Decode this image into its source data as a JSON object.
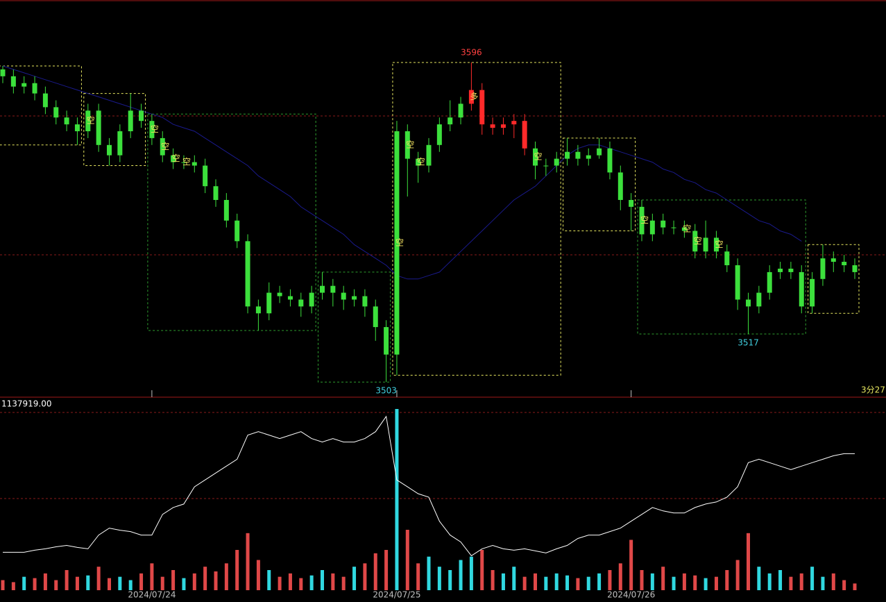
{
  "chart_data": {
    "type": "candlestick",
    "categories": [
      null,
      null,
      null,
      null,
      null,
      null,
      null,
      null,
      null,
      null,
      null,
      null,
      null,
      null,
      "2024/07/24",
      null,
      null,
      null,
      null,
      null,
      null,
      null,
      null,
      null,
      null,
      null,
      null,
      null,
      null,
      null,
      null,
      null,
      null,
      null,
      null,
      null,
      null,
      "2024/07/25",
      null,
      null,
      null,
      null,
      null,
      null,
      null,
      null,
      null,
      null,
      null,
      null,
      null,
      null,
      null,
      null,
      null,
      null,
      null,
      null,
      null,
      "2024/07/26",
      null,
      null,
      null,
      null,
      null,
      null,
      null,
      null,
      null,
      null,
      null,
      null,
      null,
      null,
      null,
      null,
      null,
      null,
      null,
      null,
      null
    ],
    "open": [
      3594,
      3592,
      3589,
      3590,
      3587,
      3583,
      3580,
      3578,
      3576,
      3582,
      3572,
      3569,
      3576,
      3582,
      3579,
      3574,
      3569,
      3567,
      3567,
      3566,
      3560,
      3556,
      3550,
      3544,
      3525,
      3523,
      3529,
      3528,
      3527,
      3525,
      3529,
      3531,
      3529,
      3527,
      3528,
      3525,
      3519,
      3511,
      3576,
      3568,
      3566,
      3572,
      3578,
      3580,
      3584,
      3588,
      3578,
      3577,
      3578,
      3579,
      3571,
      3566,
      3566,
      3568,
      3570,
      3568,
      3569,
      3571,
      3564,
      3556,
      3554,
      3546,
      3550,
      3548,
      3548,
      3547,
      3541,
      3545,
      3541,
      3537,
      3527,
      3525,
      3529,
      3535,
      3536,
      3535,
      3525,
      3533,
      3539,
      3538,
      3537
    ],
    "high": [
      3595,
      3594,
      3592,
      3592,
      3589,
      3585,
      3582,
      3580,
      3584,
      3584,
      3574,
      3578,
      3587,
      3584,
      3581,
      3576,
      3571,
      3569,
      3569,
      3568,
      3562,
      3558,
      3552,
      3546,
      3527,
      3532,
      3531,
      3530,
      3529,
      3531,
      3535,
      3533,
      3531,
      3530,
      3530,
      3527,
      3521,
      3579,
      3578,
      3570,
      3574,
      3580,
      3585,
      3586,
      3596,
      3590,
      3580,
      3580,
      3581,
      3581,
      3573,
      3568,
      3570,
      3574,
      3572,
      3571,
      3574,
      3573,
      3566,
      3558,
      3556,
      3552,
      3552,
      3550,
      3550,
      3549,
      3550,
      3547,
      3543,
      3539,
      3529,
      3531,
      3537,
      3538,
      3538,
      3537,
      3535,
      3543,
      3541,
      3540,
      3539
    ],
    "low": [
      3590,
      3587,
      3587,
      3585,
      3581,
      3578,
      3576,
      3572,
      3574,
      3570,
      3566,
      3567,
      3574,
      3577,
      3572,
      3567,
      3565,
      3565,
      3564,
      3558,
      3554,
      3548,
      3542,
      3523,
      3518,
      3521,
      3526,
      3525,
      3522,
      3523,
      3527,
      3525,
      3524,
      3525,
      3522,
      3515,
      3503,
      3505,
      3557,
      3561,
      3564,
      3570,
      3576,
      3578,
      3582,
      3575,
      3575,
      3575,
      3574,
      3569,
      3562,
      3563,
      3564,
      3566,
      3566,
      3566,
      3568,
      3562,
      3553,
      3547,
      3544,
      3544,
      3546,
      3546,
      3545,
      3539,
      3539,
      3539,
      3535,
      3524,
      3517,
      3523,
      3527,
      3533,
      3533,
      3523,
      3523,
      3531,
      3535,
      3535,
      3533
    ],
    "close": [
      3592,
      3589,
      3590,
      3587,
      3583,
      3580,
      3578,
      3576,
      3582,
      3572,
      3569,
      3576,
      3582,
      3579,
      3574,
      3569,
      3567,
      3567,
      3566,
      3560,
      3556,
      3550,
      3544,
      3525,
      3523,
      3529,
      3528,
      3527,
      3525,
      3529,
      3531,
      3529,
      3527,
      3528,
      3525,
      3519,
      3511,
      3576,
      3568,
      3566,
      3572,
      3578,
      3580,
      3584,
      3588,
      3578,
      3577,
      3578,
      3579,
      3571,
      3566,
      3566,
      3568,
      3570,
      3568,
      3569,
      3571,
      3564,
      3556,
      3554,
      3546,
      3550,
      3548,
      3548,
      3547,
      3541,
      3545,
      3541,
      3537,
      3527,
      3525,
      3529,
      3535,
      3536,
      3535,
      3525,
      3533,
      3539,
      3538,
      3537,
      3535
    ],
    "color": "#3ce03c",
    "highlight": {
      "from": 44,
      "to": 49,
      "color": "#ff2a2a"
    },
    "ma": [
      3595,
      3594,
      3593,
      3592,
      3591,
      3590,
      3589,
      3588,
      3587,
      3586,
      3585,
      3584,
      3583,
      3582,
      3581,
      3580,
      3578,
      3577,
      3576,
      3574,
      3572,
      3570,
      3568,
      3566,
      3563,
      3561,
      3559,
      3557,
      3554,
      3552,
      3550,
      3548,
      3546,
      3543,
      3541,
      3539,
      3537,
      3534,
      3533,
      3533,
      3534,
      3535,
      3538,
      3541,
      3544,
      3547,
      3550,
      3553,
      3556,
      3558,
      3560,
      3563,
      3566,
      3569,
      3571,
      3572,
      3572,
      3571,
      3570,
      3569,
      3568,
      3567,
      3565,
      3564,
      3562,
      3561,
      3559,
      3558,
      3556,
      3554,
      3552,
      3550,
      3549,
      3547,
      3546,
      3544,
      null,
      null,
      null,
      null,
      null
    ],
    "ma_color": "#1a1a8c",
    "ylim": [
      3498.6,
      3614.2
    ],
    "boxes": [
      {
        "from": 0,
        "to": 7,
        "color": "#e8e860"
      },
      {
        "from": 8,
        "to": 13,
        "color": "#e8e860"
      },
      {
        "from": 14,
        "to": 29,
        "color": "#2e9e2e"
      },
      {
        "from": 30,
        "to": 36,
        "color": "#2e9e2e"
      },
      {
        "from": 37,
        "to": 52,
        "color": "#e8e860"
      },
      {
        "from": 53,
        "to": 59,
        "color": "#e8e860"
      },
      {
        "from": 60,
        "to": 75,
        "color": "#2e9e2e"
      },
      {
        "from": 76,
        "to": 80,
        "color": "#e8e860"
      }
    ],
    "annotations": [
      {
        "label": "3596",
        "index": 44,
        "at": "high",
        "color": "#ff4040"
      },
      {
        "label": "3503",
        "index": 36,
        "at": "low",
        "color": "#40d0e0"
      },
      {
        "label": "3517",
        "index": 70,
        "at": "low",
        "color": "#40d0e0"
      }
    ],
    "signals": [
      {
        "index": 8,
        "label": "空"
      },
      {
        "index": 14,
        "label": "空"
      },
      {
        "index": 15,
        "label": "空"
      },
      {
        "index": 16,
        "label": "空"
      },
      {
        "index": 17,
        "label": "空"
      },
      {
        "index": 37,
        "label": "空"
      },
      {
        "index": 38,
        "label": "空"
      },
      {
        "index": 39,
        "label": "空"
      },
      {
        "index": 44,
        "label": "多"
      },
      {
        "index": 50,
        "label": "空"
      },
      {
        "index": 60,
        "label": "空"
      },
      {
        "index": 64,
        "label": "空"
      },
      {
        "index": 65,
        "label": "空"
      },
      {
        "index": 67,
        "label": "空"
      }
    ],
    "time_label": "3分27",
    "volume_label": "1137919.00",
    "volume": [
      60000,
      48000,
      80000,
      72000,
      100000,
      60000,
      120000,
      80000,
      88000,
      140000,
      72000,
      80000,
      60000,
      100000,
      160000,
      80000,
      120000,
      72000,
      100000,
      140000,
      112000,
      160000,
      240000,
      340000,
      180000,
      120000,
      80000,
      100000,
      72000,
      88000,
      120000,
      100000,
      80000,
      140000,
      160000,
      220000,
      240000,
      1080000,
      360000,
      160000,
      200000,
      140000,
      120000,
      180000,
      200000,
      240000,
      120000,
      100000,
      140000,
      80000,
      100000,
      80000,
      100000,
      88000,
      72000,
      80000,
      100000,
      120000,
      160000,
      300000,
      120000,
      100000,
      140000,
      80000,
      100000,
      88000,
      72000,
      80000,
      120000,
      180000,
      340000,
      140000,
      100000,
      120000,
      80000,
      100000,
      140000,
      80000,
      100000,
      60000,
      40000
    ],
    "vol_lim": [
      0,
      1137919
    ],
    "up_color": "#30d8e0",
    "down_color": "#e04848",
    "oi": [
      55,
      55,
      55,
      58,
      60,
      63,
      65,
      62,
      60,
      80,
      90,
      87,
      85,
      80,
      80,
      110,
      120,
      125,
      150,
      160,
      170,
      180,
      190,
      225,
      230,
      225,
      220,
      225,
      230,
      220,
      215,
      220,
      215,
      215,
      220,
      230,
      252,
      160,
      150,
      140,
      135,
      100,
      80,
      70,
      50,
      60,
      65,
      60,
      58,
      60,
      57,
      54,
      60,
      65,
      75,
      80,
      80,
      85,
      90,
      100,
      110,
      120,
      115,
      112,
      112,
      120,
      125,
      128,
      135,
      150,
      185,
      190,
      185,
      180,
      175,
      180,
      185,
      190,
      195,
      198,
      198
    ],
    "oi_lim": [
      0,
      277
    ],
    "oi_color": "#ffffff"
  }
}
